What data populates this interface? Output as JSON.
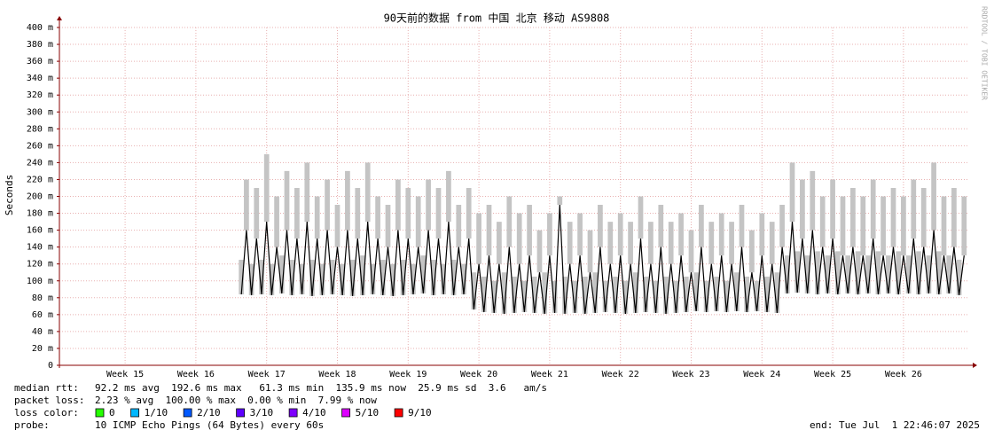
{
  "chart_data": {
    "type": "line",
    "title": "90天前的数据 from 中国 北京 移动 AS9808",
    "y_label": "Seconds",
    "side_text": "RRDTOOL / TOBI OETIKER",
    "xlim": [
      0,
      90
    ],
    "xticks": [
      {
        "value": 6.5,
        "label": "Week 15"
      },
      {
        "value": 13.5,
        "label": "Week 16"
      },
      {
        "value": 20.5,
        "label": "Week 17"
      },
      {
        "value": 27.5,
        "label": "Week 18"
      },
      {
        "value": 34.5,
        "label": "Week 19"
      },
      {
        "value": 41.5,
        "label": "Week 20"
      },
      {
        "value": 48.5,
        "label": "Week 21"
      },
      {
        "value": 55.5,
        "label": "Week 22"
      },
      {
        "value": 62.5,
        "label": "Week 23"
      },
      {
        "value": 69.5,
        "label": "Week 24"
      },
      {
        "value": 76.5,
        "label": "Week 25"
      },
      {
        "value": 83.5,
        "label": "Week 26"
      }
    ],
    "ylim": [
      0,
      0.4
    ],
    "yticks": [
      0,
      {
        "value": 0.02,
        "label": "20 m"
      },
      {
        "value": 0.04,
        "label": "40 m"
      },
      {
        "value": 0.06,
        "label": "60 m"
      },
      {
        "value": 0.08,
        "label": "80 m"
      },
      {
        "value": 0.1,
        "label": "100 m"
      },
      {
        "value": 0.12,
        "label": "120 m"
      },
      {
        "value": 0.14,
        "label": "140 m"
      },
      {
        "value": 0.16,
        "label": "160 m"
      },
      {
        "value": 0.18,
        "label": "180 m"
      },
      {
        "value": 0.2,
        "label": "200 m"
      },
      {
        "value": 0.22,
        "label": "220 m"
      },
      {
        "value": 0.24,
        "label": "240 m"
      },
      {
        "value": 0.26,
        "label": "260 m"
      },
      {
        "value": 0.28,
        "label": "280 m"
      },
      {
        "value": 0.3,
        "label": "300 m"
      },
      {
        "value": 0.32,
        "label": "320 m"
      },
      {
        "value": 0.34,
        "label": "340 m"
      },
      {
        "value": 0.36,
        "label": "360 m"
      },
      {
        "value": 0.38,
        "label": "380 m"
      },
      {
        "value": 0.4,
        "label": "400 m"
      }
    ],
    "grid": true,
    "median_color": "#000000",
    "smoke_color": "#c4c4c4",
    "x": [
      18,
      18.5,
      19,
      19.5,
      20,
      20.5,
      21,
      21.5,
      22,
      22.5,
      23,
      23.5,
      24,
      24.5,
      25,
      25.5,
      26,
      26.5,
      27,
      27.5,
      28,
      28.5,
      29,
      29.5,
      30,
      30.5,
      31,
      31.5,
      32,
      32.5,
      33,
      33.5,
      34,
      34.5,
      35,
      35.5,
      36,
      36.5,
      37,
      37.5,
      38,
      38.5,
      39,
      39.5,
      40,
      40.5,
      41,
      41.5,
      42,
      42.5,
      43,
      43.5,
      44,
      44.5,
      45,
      45.5,
      46,
      46.5,
      47,
      47.5,
      48,
      48.5,
      49,
      49.5,
      50,
      50.5,
      51,
      51.5,
      52,
      52.5,
      53,
      53.5,
      54,
      54.5,
      55,
      55.5,
      56,
      56.5,
      57,
      57.5,
      58,
      58.5,
      59,
      59.5,
      60,
      60.5,
      61,
      61.5,
      62,
      62.5,
      63,
      63.5,
      64,
      64.5,
      65,
      65.5,
      66,
      66.5,
      67,
      67.5,
      68,
      68.5,
      69,
      69.5,
      70,
      70.5,
      71,
      71.5,
      72,
      72.5,
      73,
      73.5,
      74,
      74.5,
      75,
      75.5,
      76,
      76.5,
      77,
      77.5,
      78,
      78.5,
      79,
      79.5,
      80,
      80.5,
      81,
      81.5,
      82,
      82.5,
      83,
      83.5,
      84,
      84.5,
      85,
      85.5,
      86,
      86.5,
      87,
      87.5,
      88,
      88.5,
      89,
      89.5
    ],
    "median": [
      0.084,
      0.16,
      0.083,
      0.15,
      0.084,
      0.17,
      0.083,
      0.14,
      0.085,
      0.16,
      0.083,
      0.15,
      0.084,
      0.17,
      0.082,
      0.15,
      0.083,
      0.16,
      0.084,
      0.14,
      0.083,
      0.16,
      0.082,
      0.15,
      0.083,
      0.17,
      0.084,
      0.15,
      0.083,
      0.14,
      0.082,
      0.16,
      0.083,
      0.15,
      0.084,
      0.14,
      0.085,
      0.16,
      0.083,
      0.15,
      0.084,
      0.17,
      0.083,
      0.14,
      0.084,
      0.15,
      0.066,
      0.12,
      0.063,
      0.13,
      0.062,
      0.12,
      0.061,
      0.14,
      0.062,
      0.12,
      0.063,
      0.13,
      0.062,
      0.11,
      0.061,
      0.13,
      0.062,
      0.19,
      0.061,
      0.12,
      0.062,
      0.13,
      0.061,
      0.11,
      0.062,
      0.14,
      0.063,
      0.12,
      0.062,
      0.13,
      0.061,
      0.12,
      0.062,
      0.15,
      0.063,
      0.12,
      0.062,
      0.14,
      0.061,
      0.12,
      0.062,
      0.13,
      0.063,
      0.11,
      0.064,
      0.14,
      0.063,
      0.12,
      0.064,
      0.13,
      0.063,
      0.12,
      0.064,
      0.14,
      0.063,
      0.11,
      0.064,
      0.13,
      0.063,
      0.12,
      0.062,
      0.14,
      0.085,
      0.17,
      0.086,
      0.15,
      0.085,
      0.16,
      0.084,
      0.14,
      0.085,
      0.15,
      0.084,
      0.13,
      0.085,
      0.14,
      0.084,
      0.13,
      0.085,
      0.15,
      0.084,
      0.13,
      0.085,
      0.14,
      0.084,
      0.13,
      0.085,
      0.15,
      0.084,
      0.14,
      0.085,
      0.16,
      0.084,
      0.13,
      0.085,
      0.14,
      0.083,
      0.13
    ],
    "smoke_max": [
      0.125,
      0.22,
      0.12,
      0.21,
      0.125,
      0.25,
      0.12,
      0.2,
      0.13,
      0.23,
      0.125,
      0.21,
      0.12,
      0.24,
      0.125,
      0.2,
      0.12,
      0.22,
      0.125,
      0.19,
      0.12,
      0.23,
      0.125,
      0.21,
      0.13,
      0.24,
      0.12,
      0.2,
      0.125,
      0.19,
      0.12,
      0.22,
      0.125,
      0.21,
      0.12,
      0.2,
      0.13,
      0.22,
      0.125,
      0.21,
      0.12,
      0.23,
      0.125,
      0.19,
      0.12,
      0.21,
      0.11,
      0.18,
      0.105,
      0.19,
      0.1,
      0.17,
      0.11,
      0.2,
      0.105,
      0.18,
      0.1,
      0.19,
      0.105,
      0.16,
      0.11,
      0.18,
      0.1,
      0.2,
      0.105,
      0.17,
      0.1,
      0.18,
      0.105,
      0.16,
      0.11,
      0.19,
      0.1,
      0.17,
      0.105,
      0.18,
      0.1,
      0.17,
      0.11,
      0.2,
      0.105,
      0.17,
      0.1,
      0.19,
      0.105,
      0.17,
      0.1,
      0.18,
      0.105,
      0.16,
      0.11,
      0.19,
      0.1,
      0.17,
      0.105,
      0.18,
      0.1,
      0.17,
      0.11,
      0.19,
      0.105,
      0.16,
      0.1,
      0.18,
      0.105,
      0.17,
      0.11,
      0.19,
      0.13,
      0.24,
      0.135,
      0.22,
      0.13,
      0.23,
      0.135,
      0.2,
      0.13,
      0.22,
      0.135,
      0.2,
      0.13,
      0.21,
      0.135,
      0.2,
      0.13,
      0.22,
      0.135,
      0.2,
      0.13,
      0.21,
      0.135,
      0.2,
      0.13,
      0.22,
      0.135,
      0.21,
      0.13,
      0.24,
      0.135,
      0.2,
      0.13,
      0.21,
      0.125,
      0.2
    ],
    "stats": [
      {
        "label": "median rtt:",
        "text": "92.2 ms avg  192.6 ms max   61.3 ms min  135.9 ms now  25.9 ms sd  3.6   am/s"
      },
      {
        "label": "packet loss:",
        "text": "2.23 % avg  100.00 % max  0.00 % min  7.99 % now"
      }
    ],
    "loss_label": "loss color:",
    "loss_colors": [
      {
        "name": "0",
        "color": "#26ff00"
      },
      {
        "name": "1/10",
        "color": "#00b8ff"
      },
      {
        "name": "2/10",
        "color": "#0059ff"
      },
      {
        "name": "3/10",
        "color": "#5e00ff"
      },
      {
        "name": "4/10",
        "color": "#7e00ff"
      },
      {
        "name": "5/10",
        "color": "#dd00ff"
      },
      {
        "name": "9/10",
        "color": "#ff0000"
      }
    ],
    "probe_label": "probe:",
    "probe_text": "10 ICMP Echo Pings (64 Bytes) every 60s",
    "end_text": "end: Tue Jul  1 22:46:07 2025"
  }
}
